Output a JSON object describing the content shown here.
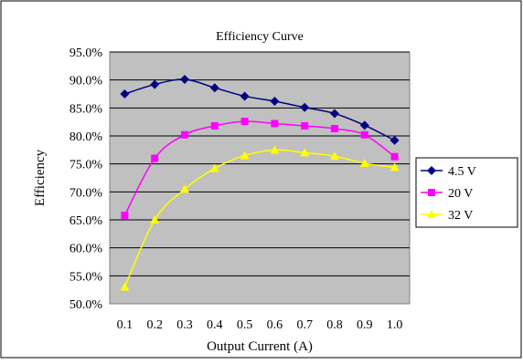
{
  "chart_data": {
    "type": "line",
    "title": "Efficiency Curve",
    "xlabel": "Output Current (A)",
    "ylabel": "Efficiency",
    "x": [
      0.1,
      0.2,
      0.3,
      0.4,
      0.5,
      0.6,
      0.7,
      0.8,
      0.9,
      1.0
    ],
    "x_tick_labels": [
      "0.1",
      "0.2",
      "0.3",
      "0.4",
      "0.5",
      "0.6",
      "0.7",
      "0.8",
      "0.9",
      "1.0"
    ],
    "ylim": [
      50,
      95
    ],
    "y_ticks": [
      50,
      55,
      60,
      65,
      70,
      75,
      80,
      85,
      90,
      95
    ],
    "y_tick_labels": [
      "50.0%",
      "55.0%",
      "60.0%",
      "65.0%",
      "70.0%",
      "75.0%",
      "80.0%",
      "85.0%",
      "90.0%",
      "95.0%"
    ],
    "grid": true,
    "plot_background": "#c0c0c0",
    "legend_position": "right",
    "series": [
      {
        "name": "4.5 V",
        "color": "#000080",
        "marker": "diamond",
        "values": [
          87.5,
          89.2,
          90.1,
          88.6,
          87.1,
          86.2,
          85.1,
          84.0,
          81.9,
          79.2
        ]
      },
      {
        "name": "20 V",
        "color": "#ff00ff",
        "marker": "square",
        "values": [
          65.8,
          76.0,
          80.2,
          81.8,
          82.6,
          82.2,
          81.8,
          81.3,
          80.2,
          76.3
        ]
      },
      {
        "name": "32 V",
        "color": "#ffff00",
        "marker": "triangle",
        "values": [
          53.0,
          65.0,
          70.5,
          74.2,
          76.5,
          77.5,
          77.0,
          76.4,
          75.1,
          74.4
        ]
      }
    ]
  }
}
